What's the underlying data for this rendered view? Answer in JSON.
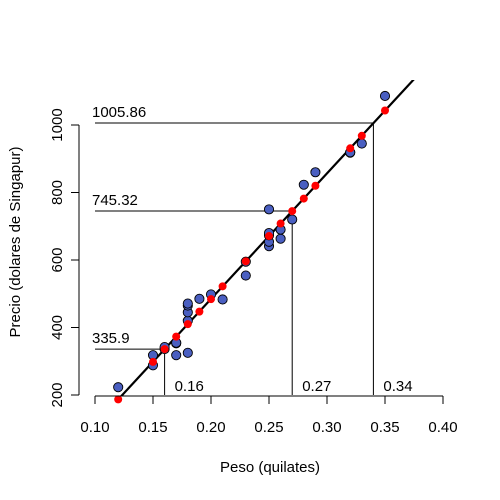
{
  "chart_data": {
    "type": "scatter",
    "title": "",
    "xlabel": "Peso (quilates)",
    "ylabel": "Precio (dolares de Singapur)",
    "xlim": [
      0.1,
      0.4
    ],
    "ylim": [
      200,
      1100
    ],
    "xticks": [
      "0.10",
      "0.15",
      "0.20",
      "0.25",
      "0.30",
      "0.35",
      "0.40"
    ],
    "yticks": [
      "200",
      "400",
      "600",
      "800",
      "1000"
    ],
    "grid": false,
    "legend": "none",
    "fit_line": {
      "intercept": -259.63,
      "slope": 3721.02,
      "color": "#000000"
    },
    "series": [
      {
        "marker_color": "#4a5fc1",
        "points": [
          {
            "x": 0.12,
            "y": 223
          },
          {
            "x": 0.15,
            "y": 288
          },
          {
            "x": 0.15,
            "y": 318
          },
          {
            "x": 0.16,
            "y": 336
          },
          {
            "x": 0.16,
            "y": 342
          },
          {
            "x": 0.17,
            "y": 318
          },
          {
            "x": 0.17,
            "y": 353
          },
          {
            "x": 0.17,
            "y": 355
          },
          {
            "x": 0.18,
            "y": 325
          },
          {
            "x": 0.18,
            "y": 420
          },
          {
            "x": 0.18,
            "y": 445
          },
          {
            "x": 0.18,
            "y": 465
          },
          {
            "x": 0.18,
            "y": 471
          },
          {
            "x": 0.19,
            "y": 485
          },
          {
            "x": 0.2,
            "y": 498
          },
          {
            "x": 0.21,
            "y": 483
          },
          {
            "x": 0.23,
            "y": 554
          },
          {
            "x": 0.23,
            "y": 595
          },
          {
            "x": 0.25,
            "y": 641
          },
          {
            "x": 0.25,
            "y": 654
          },
          {
            "x": 0.25,
            "y": 673
          },
          {
            "x": 0.25,
            "y": 680
          },
          {
            "x": 0.25,
            "y": 750
          },
          {
            "x": 0.26,
            "y": 663
          },
          {
            "x": 0.26,
            "y": 690
          },
          {
            "x": 0.27,
            "y": 720
          },
          {
            "x": 0.28,
            "y": 823
          },
          {
            "x": 0.29,
            "y": 860
          },
          {
            "x": 0.32,
            "y": 918
          },
          {
            "x": 0.32,
            "y": 919
          },
          {
            "x": 0.33,
            "y": 945
          },
          {
            "x": 0.35,
            "y": 1086
          }
        ]
      },
      {
        "marker_color": "#ff0000",
        "points": [
          {
            "x": 0.12,
            "y": 187
          },
          {
            "x": 0.15,
            "y": 298
          },
          {
            "x": 0.16,
            "y": 336
          },
          {
            "x": 0.17,
            "y": 373
          },
          {
            "x": 0.18,
            "y": 410
          },
          {
            "x": 0.19,
            "y": 447
          },
          {
            "x": 0.2,
            "y": 484
          },
          {
            "x": 0.21,
            "y": 522
          },
          {
            "x": 0.23,
            "y": 596
          },
          {
            "x": 0.25,
            "y": 671
          },
          {
            "x": 0.26,
            "y": 708
          },
          {
            "x": 0.27,
            "y": 745
          },
          {
            "x": 0.28,
            "y": 782
          },
          {
            "x": 0.29,
            "y": 820
          },
          {
            "x": 0.32,
            "y": 931
          },
          {
            "x": 0.33,
            "y": 968
          },
          {
            "x": 0.35,
            "y": 1043
          }
        ]
      }
    ],
    "reference_lines": [
      {
        "x": 0.16,
        "y": 335.9,
        "x_label": "0.16",
        "y_label": "335.9"
      },
      {
        "x": 0.27,
        "y": 745.32,
        "x_label": "0.27",
        "y_label": "745.32"
      },
      {
        "x": 0.34,
        "y": 1005.86,
        "x_label": "0.34",
        "y_label": "1005.86"
      }
    ]
  }
}
